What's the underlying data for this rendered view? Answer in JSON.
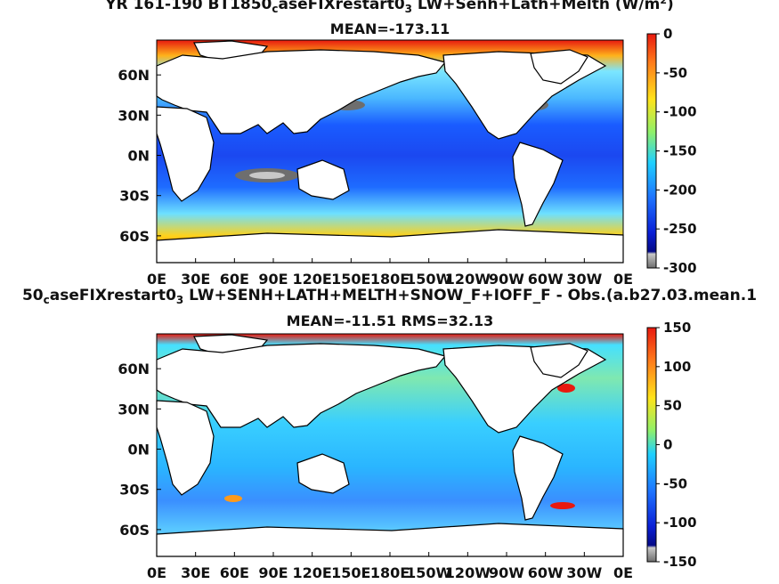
{
  "chart_data": [
    {
      "type": "heatmap",
      "title_prefix": "YR 161-190 BT1850",
      "title_sub": "c",
      "title_mid": "aseFIXrestart0",
      "title_sub2": "3",
      "title_suffix": " LW+Senh+Lath+Melth (W/m",
      "title_sup": "2",
      "title_end": ")",
      "subtitle": "MEAN=-173.11",
      "xticks": [
        "0E",
        "30E",
        "60E",
        "90E",
        "120E",
        "150E",
        "180E",
        "150W",
        "120W",
        "90W",
        "60W",
        "30W",
        "0E"
      ],
      "yticks": [
        "60N",
        "30N",
        "0N",
        "30S",
        "60S"
      ],
      "ytick_lat": [
        60,
        30,
        0,
        -30,
        -60
      ],
      "lat_range": [
        -80,
        86
      ],
      "colorbar": {
        "ticks": [
          "0",
          "-50",
          "-100",
          "-150",
          "-200",
          "-250",
          "-300"
        ],
        "range": [
          -300,
          0
        ]
      }
    },
    {
      "type": "heatmap",
      "title_prefix": "50",
      "title_sub": "c",
      "title_mid": "aseFIXrestart0",
      "title_sub2": "3",
      "title_suffix": " LW+SENH+LATH+MELTH+SNOW_F+IOFF_F - Obs.(a.b27.03.mean.1",
      "subtitle": "MEAN=-11.51 RMS=32.13",
      "xticks": [
        "0E",
        "30E",
        "60E",
        "90E",
        "120E",
        "150E",
        "180E",
        "150W",
        "120W",
        "90W",
        "60W",
        "30W",
        "0E"
      ],
      "yticks": [
        "60N",
        "30N",
        "0N",
        "30S",
        "60S"
      ],
      "ytick_lat": [
        60,
        30,
        0,
        -30,
        -60
      ],
      "lat_range": [
        -80,
        86
      ],
      "colorbar": {
        "ticks": [
          "150",
          "100",
          "50",
          "0",
          "-50",
          "-100",
          "-150"
        ],
        "range": [
          -150,
          150
        ]
      }
    }
  ],
  "colors": {
    "ocean_low_top": "#1e5bff",
    "ocean_high_top": "#ffd21a",
    "ocean_mid_bottom": "#2ec4ff",
    "land": "#ffffff",
    "coast": "#000000",
    "polar": "#e8190f"
  }
}
